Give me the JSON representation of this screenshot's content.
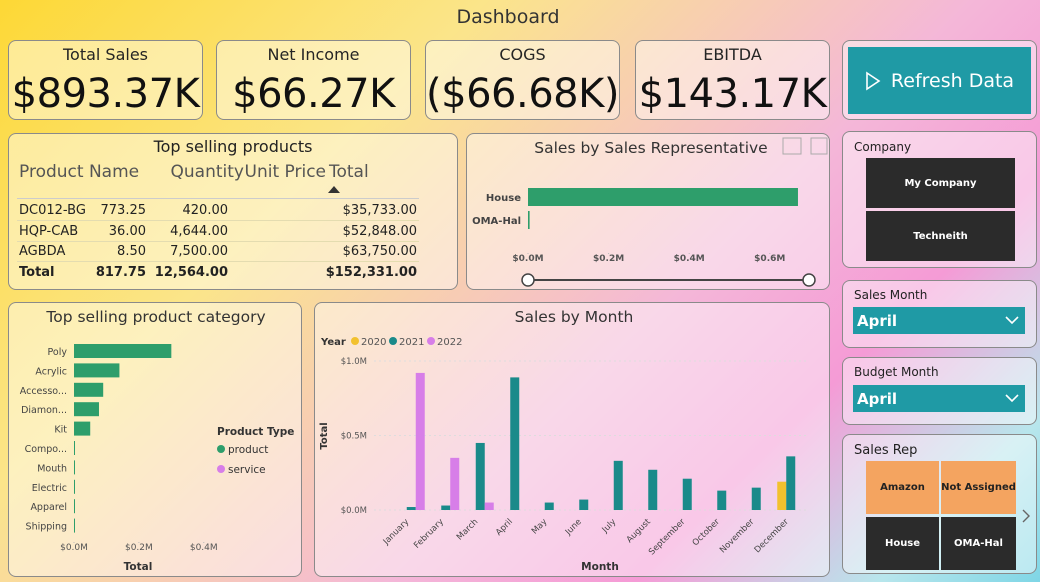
{
  "title": "Dashboard",
  "kpis": [
    {
      "label": "Total Sales",
      "value": "$893.37K"
    },
    {
      "label": "Net Income",
      "value": "$66.27K"
    },
    {
      "label": "COGS",
      "value": "($66.68K)"
    },
    {
      "label": "EBITDA",
      "value": "$143.17K"
    }
  ],
  "refresh_button": "Refresh Data",
  "table": {
    "title": "Top selling products",
    "columns": [
      "Product Name",
      "Quantity",
      "Unit Price",
      "Total"
    ],
    "rows": [
      [
        "DC012-BG",
        "420.00",
        "773.25",
        "$35,733.00"
      ],
      [
        "HQP-CAB",
        "4,644.00",
        "36.00",
        "$52,848.00"
      ],
      [
        "AGBDA",
        "7,500.00",
        "8.50",
        "$63,750.00"
      ]
    ],
    "total": [
      "Total",
      "12,564.00",
      "817.75",
      "$152,331.00"
    ]
  },
  "slicers": {
    "company": {
      "title": "Company",
      "options": [
        "My Company",
        "Techneith"
      ]
    },
    "sales_month": {
      "title": "Sales Month",
      "selected": "April"
    },
    "budget_month": {
      "title": "Budget Month",
      "selected": "April"
    },
    "sales_rep": {
      "title": "Sales Rep",
      "options": [
        "Amazon",
        "Not Assigned",
        "House",
        "OMA-Hal"
      ]
    }
  },
  "chart_data": [
    {
      "type": "hbar",
      "title": "Sales by Sales Representative",
      "categories": [
        "House",
        "OMA-Hal"
      ],
      "values": [
        0.67,
        0.004
      ],
      "color": "#2e9e6b",
      "xlim": [
        0,
        0.68
      ],
      "xticks": [
        {
          "value": 0,
          "label": "$0.0M"
        },
        {
          "value": 0.2,
          "label": "$0.2M"
        },
        {
          "value": 0.4,
          "label": "$0.4M"
        },
        {
          "value": 0.6,
          "label": "$0.6M"
        }
      ]
    },
    {
      "type": "hbar",
      "title": "Top selling product category",
      "x_label": "Total",
      "legend_title": "Product Type",
      "categories": [
        "Poly",
        "Acrylic",
        "Accesso...",
        "Diamon...",
        "Kit",
        "Compo...",
        "Mouth",
        "Electric",
        "Apparel",
        "Shipping"
      ],
      "series": [
        {
          "name": "product",
          "color": "#2e9e6b",
          "values": [
            0.3,
            0.14,
            0.09,
            0.077,
            0.05,
            0.003,
            0.003,
            0.002,
            0.001,
            0.001
          ]
        },
        {
          "name": "service",
          "color": "#d77ee8",
          "values": [
            null,
            null,
            null,
            null,
            null,
            null,
            null,
            null,
            null,
            null
          ]
        }
      ],
      "xlim": [
        0,
        0.45
      ],
      "xticks": [
        {
          "value": 0,
          "label": "$0.0M"
        },
        {
          "value": 0.2,
          "label": "$0.2M"
        },
        {
          "value": 0.4,
          "label": "$0.4M"
        }
      ]
    },
    {
      "type": "grouped_bar",
      "title": "Sales by Month",
      "x_label": "Month",
      "y_label": "Total",
      "legend_title": "Year",
      "categories": [
        "January",
        "February",
        "March",
        "April",
        "May",
        "June",
        "July",
        "August",
        "September",
        "October",
        "November",
        "December"
      ],
      "series": [
        {
          "name": "2020",
          "color": "#f2c12e",
          "values": [
            null,
            null,
            null,
            null,
            null,
            null,
            null,
            null,
            null,
            null,
            null,
            0.19
          ]
        },
        {
          "name": "2021",
          "color": "#1a8a8a",
          "values": [
            0.02,
            0.03,
            0.45,
            0.89,
            0.05,
            0.07,
            0.33,
            0.27,
            0.21,
            0.13,
            0.15,
            0.36
          ]
        },
        {
          "name": "2022",
          "color": "#d77ee8",
          "values": [
            0.92,
            0.35,
            0.05,
            null,
            null,
            null,
            null,
            null,
            null,
            null,
            null,
            null
          ]
        }
      ],
      "ylim": [
        0,
        1.0
      ],
      "yticks": [
        {
          "value": 0,
          "label": "$0.0M"
        },
        {
          "value": 0.5,
          "label": "$0.5M"
        },
        {
          "value": 1.0,
          "label": "$1.0M"
        }
      ]
    }
  ]
}
